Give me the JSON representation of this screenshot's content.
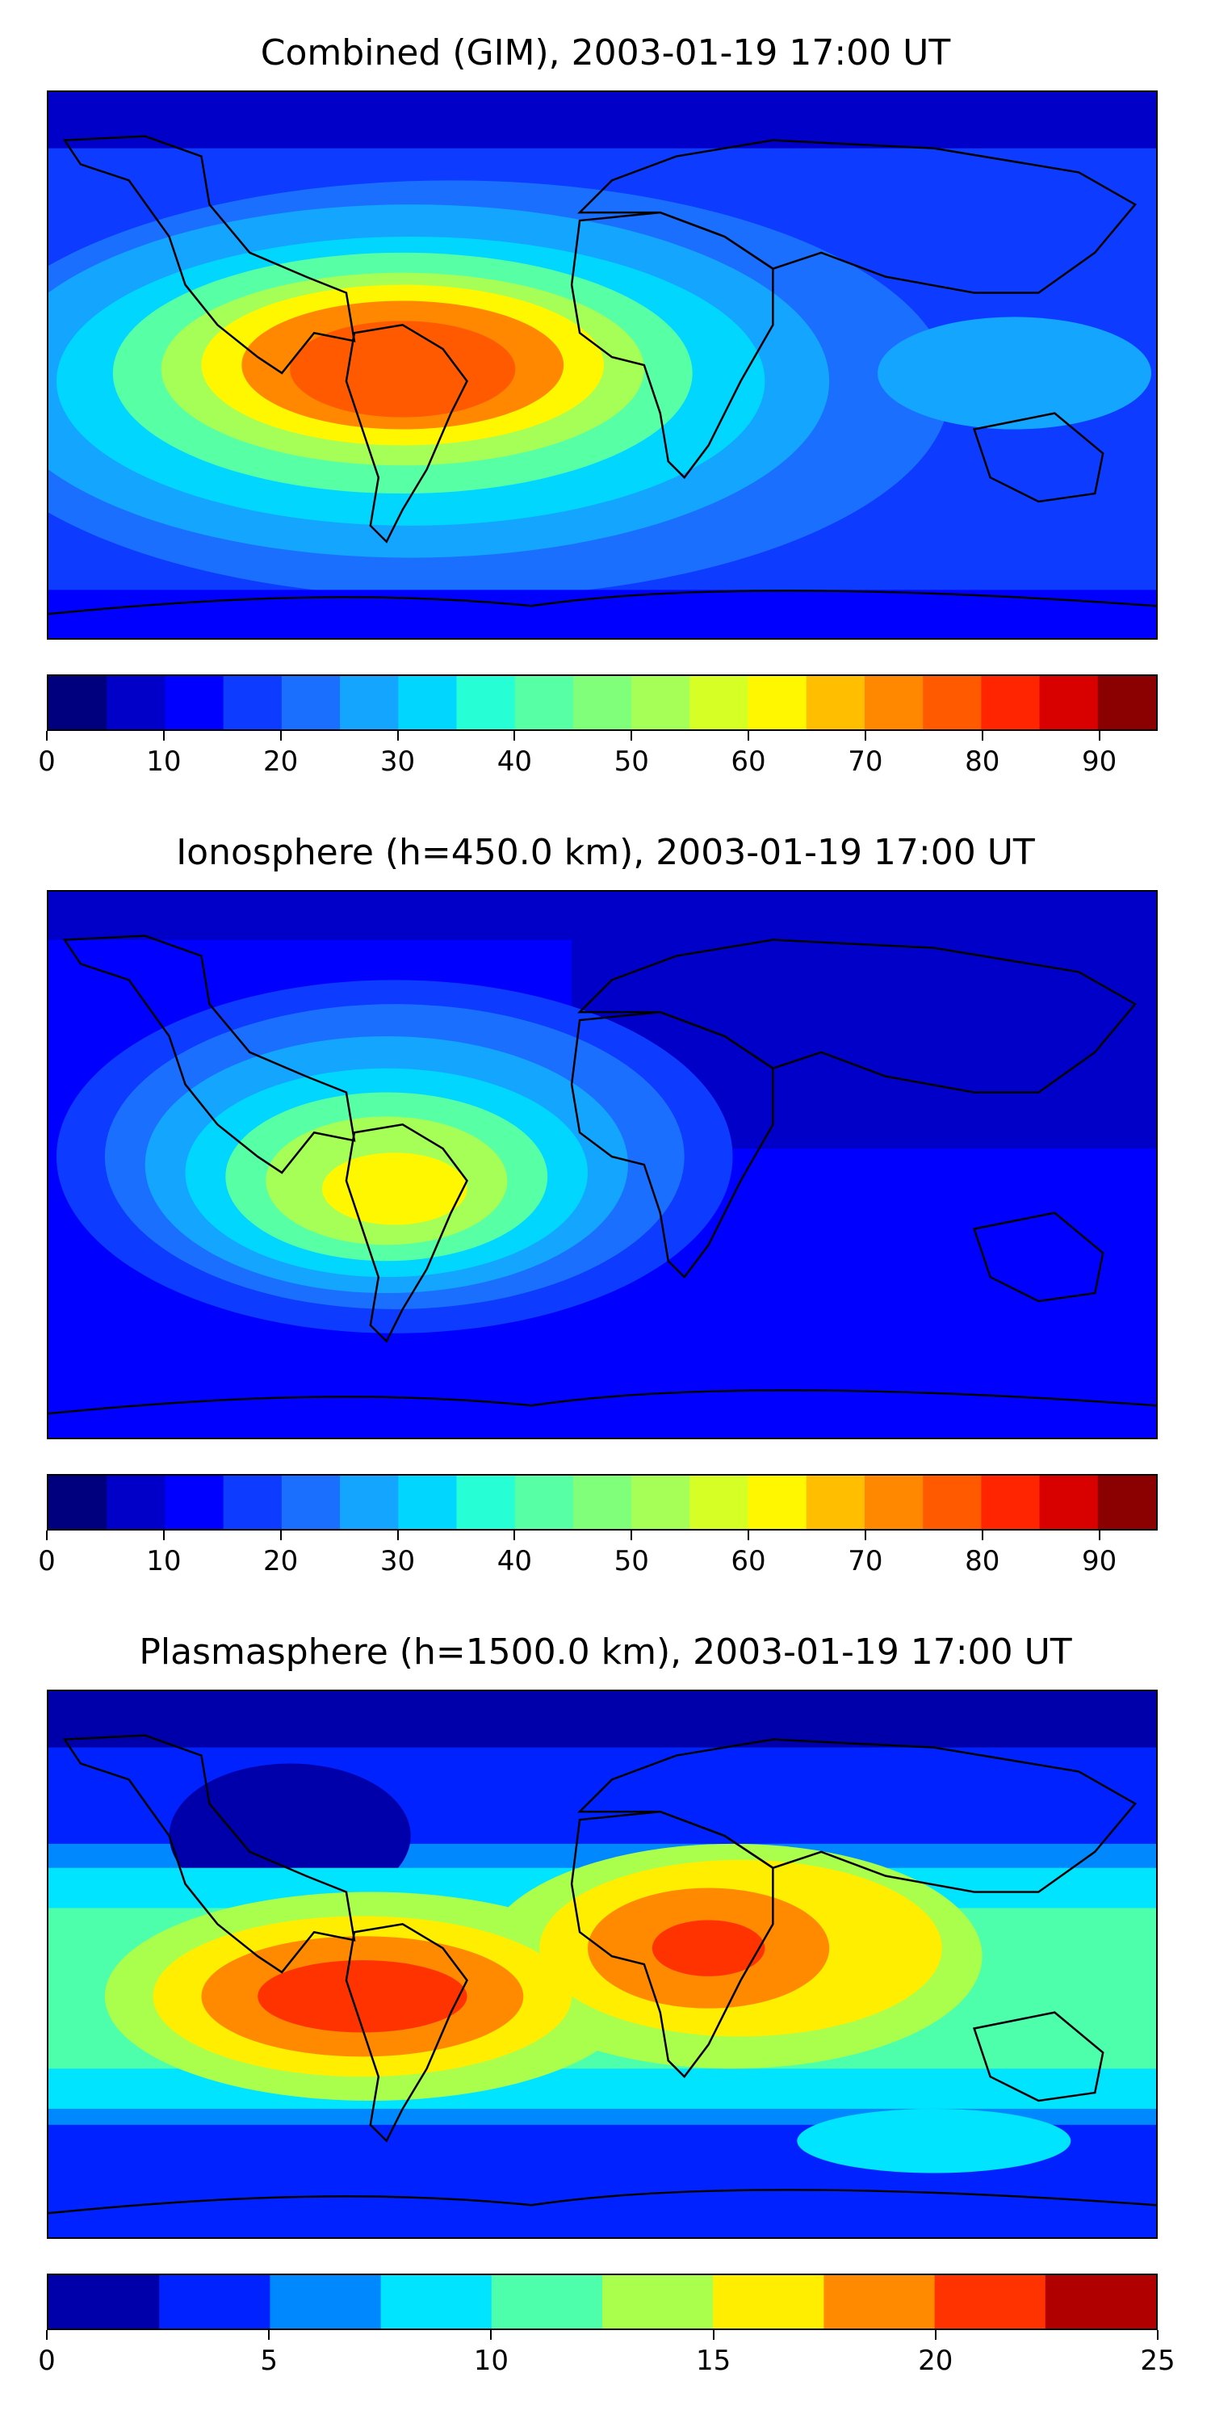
{
  "panels": [
    {
      "title": "Combined (GIM), 2003-01-19 17:00 UT",
      "colorbar": {
        "min": 0,
        "max": 95,
        "step": 5,
        "ticks": [
          0,
          10,
          20,
          30,
          40,
          50,
          60,
          70,
          80,
          90
        ]
      },
      "max_region": "South America (~80-85)"
    },
    {
      "title": "Ionosphere  (h=450.0 km), 2003-01-19 17:00 UT",
      "colorbar": {
        "min": 0,
        "max": 95,
        "step": 5,
        "ticks": [
          0,
          10,
          20,
          30,
          40,
          50,
          60,
          70,
          80,
          90
        ]
      },
      "max_region": "South America (~60-65)"
    },
    {
      "title": "Plasmasphere (h=1500.0 km), 2003-01-19 17:00 UT",
      "colorbar": {
        "min": 0,
        "max": 25,
        "step": 2.5,
        "ticks": [
          0,
          5,
          10,
          15,
          20,
          25
        ]
      },
      "max_region": "South America and East Africa (~20-22.5)"
    }
  ],
  "colors": {
    "jet19": [
      "#00007f",
      "#0000c8",
      "#0000ff",
      "#0d3bff",
      "#1a6fff",
      "#13a5ff",
      "#00d6ff",
      "#26ffd6",
      "#57ffa5",
      "#80ff7a",
      "#a5ff57",
      "#d6ff26",
      "#fff700",
      "#ffbf00",
      "#ff8800",
      "#ff5a00",
      "#ff2500",
      "#d90000",
      "#8b0000"
    ],
    "jet10": [
      "#0000aa",
      "#0022ff",
      "#0088ff",
      "#00e4ff",
      "#4dffaa",
      "#aaff4d",
      "#ffee00",
      "#ff8a00",
      "#ff3300",
      "#b00000"
    ]
  },
  "icons": {
    "continents": "continent-outline-icon"
  }
}
